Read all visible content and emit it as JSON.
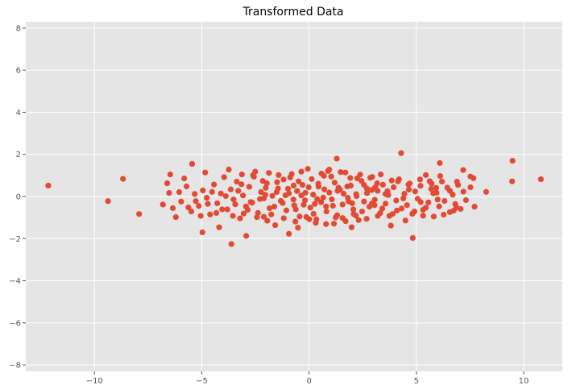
{
  "chart_data": {
    "type": "scatter",
    "title": "Transformed Data",
    "xlabel": "",
    "ylabel": "",
    "xlim": [
      -13.2,
      11.8
    ],
    "ylim": [
      -8.3,
      8.3
    ],
    "x_ticks": [
      -10,
      -5,
      0,
      5,
      10
    ],
    "y_ticks": [
      -8,
      -6,
      -4,
      -2,
      0,
      2,
      4,
      6,
      8
    ],
    "x_tick_labels": [
      "−10",
      "−5",
      "0",
      "5",
      "10"
    ],
    "y_tick_labels": [
      "−8",
      "−6",
      "−4",
      "−2",
      "0",
      "2",
      "4",
      "6",
      "8"
    ],
    "grid": true,
    "legend": "none",
    "colors": {
      "points": "#E24A33",
      "plot_background": "#E5E5E5",
      "grid": "#FFFFFF",
      "tick_text": "#555555"
    },
    "points": [
      [
        -12.15,
        0.52
      ],
      [
        -9.37,
        -0.22
      ],
      [
        -8.67,
        0.84
      ],
      [
        -7.92,
        -0.83
      ],
      [
        9.48,
        1.7
      ],
      [
        9.46,
        0.72
      ],
      [
        10.8,
        0.82
      ],
      [
        8.25,
        0.22
      ],
      [
        4.29,
        2.06
      ],
      [
        1.29,
        1.8
      ],
      [
        -3.62,
        -2.26
      ],
      [
        4.83,
        -1.97
      ],
      [
        -4.97,
        -1.7
      ],
      [
        -4.19,
        -1.46
      ],
      [
        -2.93,
        -1.87
      ],
      [
        -5.45,
        1.55
      ],
      [
        -6.47,
        1.05
      ],
      [
        6.09,
        1.59
      ],
      [
        7.18,
        1.26
      ],
      [
        7.52,
        0.95
      ],
      [
        -6.81,
        -0.38
      ],
      [
        -6.52,
        0.17
      ],
      [
        -6.35,
        -0.55
      ],
      [
        -6.21,
        -0.98
      ],
      [
        -5.96,
        -0.24
      ],
      [
        -5.71,
        0.48
      ],
      [
        -5.49,
        -0.71
      ],
      [
        -5.33,
        0.12
      ],
      [
        -5.14,
        -0.45
      ],
      [
        -4.95,
        0.29
      ],
      [
        -4.77,
        -0.06
      ],
      [
        -4.61,
        -0.85
      ],
      [
        -4.43,
        0.57
      ],
      [
        -4.28,
        -0.32
      ],
      [
        -4.11,
        0.14
      ],
      [
        -3.96,
        0.92
      ],
      [
        -3.81,
        -0.61
      ],
      [
        -3.65,
        0.34
      ],
      [
        -3.52,
        -0.14
      ],
      [
        -3.37,
        0.71
      ],
      [
        -3.22,
        -1.04
      ],
      [
        -3.08,
        0.05
      ],
      [
        -2.94,
        -0.47
      ],
      [
        -2.79,
        0.46
      ],
      [
        -2.65,
        -0.29
      ],
      [
        -2.51,
        1.18
      ],
      [
        -2.38,
        -0.78
      ],
      [
        -2.24,
        0.21
      ],
      [
        -2.11,
        -0.09
      ],
      [
        -1.97,
        0.63
      ],
      [
        -1.84,
        -0.56
      ],
      [
        -1.71,
        0.03
      ],
      [
        -1.58,
        -1.36
      ],
      [
        -1.45,
        0.38
      ],
      [
        -1.32,
        -0.21
      ],
      [
        -1.19,
        0.81
      ],
      [
        -1.06,
        -0.66
      ],
      [
        -0.94,
        0.15
      ],
      [
        -0.81,
        1.07
      ],
      [
        -0.69,
        -0.42
      ],
      [
        -0.56,
        0.26
      ],
      [
        -0.44,
        -0.95
      ],
      [
        -0.31,
        0.55
      ],
      [
        -0.19,
        -0.18
      ],
      [
        -0.06,
        1.31
      ],
      [
        0.06,
        -0.53
      ],
      [
        0.19,
        0.09
      ],
      [
        0.31,
        -1.25
      ],
      [
        0.44,
        0.47
      ],
      [
        0.56,
        -0.27
      ],
      [
        0.69,
        0.98
      ],
      [
        0.81,
        -0.71
      ],
      [
        0.94,
        0.19
      ],
      [
        1.06,
        -0.13
      ],
      [
        1.19,
        0.66
      ],
      [
        1.31,
        -0.89
      ],
      [
        1.44,
        0.32
      ],
      [
        1.56,
        -0.38
      ],
      [
        1.69,
        1.14
      ],
      [
        1.81,
        -0.06
      ],
      [
        1.94,
        0.52
      ],
      [
        2.06,
        -0.61
      ],
      [
        2.19,
        0.11
      ],
      [
        2.31,
        -1.12
      ],
      [
        2.44,
        0.74
      ],
      [
        2.56,
        -0.24
      ],
      [
        2.69,
        0.38
      ],
      [
        2.81,
        -0.48
      ],
      [
        2.94,
        0.93
      ],
      [
        3.06,
        -0.15
      ],
      [
        3.19,
        0.27
      ],
      [
        3.31,
        -0.79
      ],
      [
        3.44,
        0.56
      ],
      [
        3.56,
        -0.34
      ],
      [
        3.69,
        0.07
      ],
      [
        3.81,
        -1.38
      ],
      [
        3.94,
        0.44
      ],
      [
        4.06,
        -0.19
      ],
      [
        4.19,
        0.82
      ],
      [
        4.31,
        -0.57
      ],
      [
        4.44,
        0.13
      ],
      [
        4.56,
        -0.41
      ],
      [
        4.69,
        0.62
      ],
      [
        4.81,
        -0.82
      ],
      [
        4.94,
        0.24
      ],
      [
        5.06,
        -0.11
      ],
      [
        5.19,
        0.51
      ],
      [
        5.31,
        -0.63
      ],
      [
        5.44,
        1.02
      ],
      [
        5.56,
        -0.28
      ],
      [
        5.69,
        0.36
      ],
      [
        5.81,
        -0.95
      ],
      [
        5.94,
        0.18
      ],
      [
        6.06,
        -0.47
      ],
      [
        6.19,
        0.71
      ],
      [
        6.31,
        -0.21
      ],
      [
        6.44,
        0.42
      ],
      [
        6.56,
        -0.74
      ],
      [
        6.69,
        0.09
      ],
      [
        6.81,
        -0.36
      ],
      [
        6.94,
        0.55
      ],
      [
        7.06,
        -0.59
      ],
      [
        7.19,
        0.23
      ],
      [
        7.31,
        -0.17
      ],
      [
        7.52,
        0.44
      ],
      [
        7.71,
        -0.48
      ],
      [
        7.66,
        0.87
      ],
      [
        -5.82,
        0.86
      ],
      [
        -5.28,
        -0.22
      ],
      [
        -4.84,
        1.14
      ],
      [
        -4.52,
        0.22
      ],
      [
        -4.05,
        -0.61
      ],
      [
        -3.74,
        1.28
      ],
      [
        -3.44,
        -0.37
      ],
      [
        -3.15,
        0.58
      ],
      [
        -2.86,
        -0.63
      ],
      [
        -2.57,
        0.94
      ],
      [
        -2.29,
        -0.12
      ],
      [
        -2.02,
        0.41
      ],
      [
        -1.76,
        -0.85
      ],
      [
        -1.49,
        0.68
      ],
      [
        -1.23,
        -0.31
      ],
      [
        -0.98,
        0.37
      ],
      [
        -0.73,
        -0.14
      ],
      [
        -0.49,
        0.72
      ],
      [
        -0.25,
        -0.39
      ],
      [
        -0.02,
        0.44
      ],
      [
        0.21,
        -0.82
      ],
      [
        0.43,
        0.61
      ],
      [
        0.66,
        -0.05
      ],
      [
        0.88,
        1.21
      ],
      [
        1.11,
        -0.44
      ],
      [
        1.33,
        0.27
      ],
      [
        1.56,
        -1.02
      ],
      [
        1.78,
        0.48
      ],
      [
        2.01,
        -0.32
      ],
      [
        2.24,
        0.86
      ],
      [
        2.47,
        -0.71
      ],
      [
        2.7,
        0.16
      ],
      [
        2.93,
        -0.33
      ],
      [
        3.17,
        0.63
      ],
      [
        3.41,
        -0.57
      ],
      [
        3.65,
        0.25
      ],
      [
        3.89,
        -0.83
      ],
      [
        4.14,
        0.72
      ],
      [
        4.39,
        -0.09
      ],
      [
        4.65,
        0.33
      ],
      [
        4.91,
        -0.71
      ],
      [
        5.17,
        0.81
      ],
      [
        5.44,
        -0.53
      ],
      [
        5.71,
        0.61
      ],
      [
        5.99,
        -0.14
      ],
      [
        6.27,
        -0.86
      ],
      [
        6.56,
        0.27
      ],
      [
        6.86,
        -0.52
      ],
      [
        -3.88,
        0.02
      ],
      [
        -3.3,
        0.27
      ],
      [
        -2.72,
        -0.26
      ],
      [
        -2.16,
        0.74
      ],
      [
        -1.62,
        -0.48
      ],
      [
        -1.1,
        0.06
      ],
      [
        -0.62,
        -0.61
      ],
      [
        -0.17,
        0.18
      ],
      [
        0.27,
        -0.35
      ],
      [
        0.71,
        0.34
      ],
      [
        1.16,
        -1.29
      ],
      [
        1.61,
        0.13
      ],
      [
        2.08,
        -0.83
      ],
      [
        2.56,
        0.55
      ],
      [
        3.05,
        -0.41
      ],
      [
        3.56,
        0.12
      ],
      [
        4.09,
        -0.67
      ],
      [
        4.63,
        0.57
      ],
      [
        5.2,
        -0.26
      ],
      [
        5.79,
        0.15
      ],
      [
        -1.42,
        1.02
      ],
      [
        -0.88,
        0.91
      ],
      [
        -0.36,
        1.18
      ],
      [
        0.12,
        0.83
      ],
      [
        0.58,
        1.09
      ],
      [
        1.03,
        0.95
      ],
      [
        1.47,
        1.16
      ],
      [
        1.92,
        0.88
      ],
      [
        2.38,
        1.04
      ],
      [
        2.85,
        0.89
      ],
      [
        3.34,
        1.05
      ],
      [
        3.85,
        0.76
      ],
      [
        -1.18,
        -1.03
      ],
      [
        -0.64,
        -1.19
      ],
      [
        -0.13,
        -0.97
      ],
      [
        0.34,
        -1.08
      ],
      [
        0.79,
        -1.31
      ],
      [
        1.24,
        -0.99
      ],
      [
        1.7,
        -1.17
      ],
      [
        2.18,
        -0.91
      ],
      [
        2.68,
        -1.06
      ],
      [
        3.2,
        -0.92
      ],
      [
        -2.43,
        -0.98
      ],
      [
        -1.95,
        -1.15
      ],
      [
        -2.61,
        1.01
      ],
      [
        -1.87,
        1.12
      ],
      [
        -0.52,
        -1.48
      ],
      [
        0.94,
        1.28
      ],
      [
        -0.94,
        -1.77
      ],
      [
        0.01,
        -1.08
      ],
      [
        1.98,
        -1.46
      ],
      [
        2.92,
        0.31
      ],
      [
        -3.05,
        -0.81
      ],
      [
        -3.55,
        -0.92
      ],
      [
        -4.32,
        -0.78
      ],
      [
        -4.72,
        -0.35
      ],
      [
        -5.62,
        -0.52
      ],
      [
        -6.05,
        0.21
      ],
      [
        -3.13,
        1.05
      ],
      [
        -2.11,
        -0.96
      ],
      [
        6.11,
        0.97
      ],
      [
        5.62,
        0.73
      ],
      [
        6.74,
        -0.67
      ],
      [
        5.31,
        -0.91
      ],
      [
        4.49,
        -1.14
      ],
      [
        3.74,
        -0.92
      ],
      [
        -1.51,
        0.21
      ],
      [
        -0.36,
        0.05
      ],
      [
        0.38,
        -0.12
      ],
      [
        1.37,
        0.42
      ],
      [
        2.21,
        0.02
      ],
      [
        3.08,
        0.44
      ],
      [
        -6.61,
        0.63
      ],
      [
        6.89,
        0.71
      ],
      [
        -5.05,
        -0.92
      ],
      [
        5.92,
        0.41
      ],
      [
        -2.04,
        0.08
      ],
      [
        1.84,
        -0.23
      ],
      [
        -0.72,
        0.52
      ],
      [
        0.79,
        -0.47
      ]
    ]
  }
}
